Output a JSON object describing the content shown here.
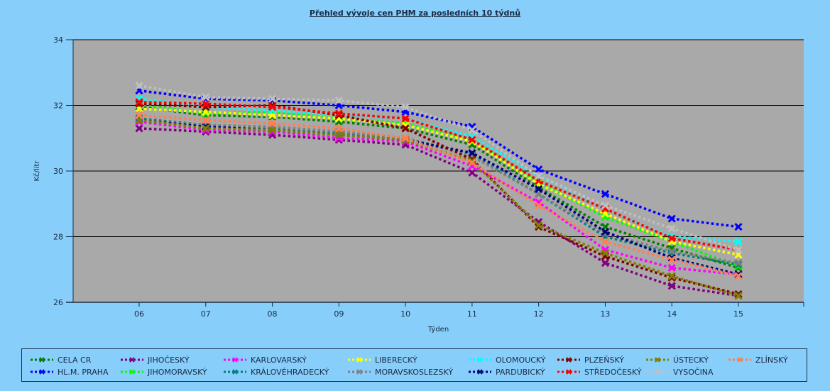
{
  "chart_data": {
    "type": "line",
    "title": "Přehled vývoje cen PHM za posledních 10 týdnů",
    "xlabel": "Týden",
    "ylabel": "Kč/litr",
    "ylim": [
      26,
      34
    ],
    "yticks": [
      "26",
      "28",
      "30",
      "32",
      "34"
    ],
    "grid": true,
    "legend_position": "bottom",
    "categories": [
      "06",
      "07",
      "08",
      "09",
      "10",
      "11",
      "12",
      "13",
      "14",
      "15"
    ],
    "series": [
      {
        "name": "CELA CR",
        "color": "#008000",
        "values": [
          31.95,
          31.7,
          31.65,
          31.5,
          31.3,
          30.8,
          29.5,
          28.3,
          27.65,
          27.05
        ]
      },
      {
        "name": "HL.M. PRAHA",
        "color": "#0000ff",
        "values": [
          32.45,
          32.2,
          32.15,
          32.0,
          31.8,
          31.35,
          30.05,
          29.3,
          28.55,
          28.3
        ]
      },
      {
        "name": "JIHOČESKÝ",
        "color": "#800080",
        "values": [
          31.3,
          31.2,
          31.1,
          30.95,
          30.8,
          29.95,
          28.45,
          27.2,
          26.5,
          26.2
        ]
      },
      {
        "name": "JIHOMORAVSKÝ",
        "color": "#00ff00",
        "values": [
          32.05,
          31.75,
          31.8,
          31.6,
          31.45,
          30.95,
          29.65,
          28.6,
          27.85,
          27.1
        ]
      },
      {
        "name": "KARLOVARSKÝ",
        "color": "#ff00ff",
        "values": [
          31.5,
          31.25,
          31.2,
          31.0,
          30.9,
          30.15,
          29.05,
          27.6,
          27.05,
          26.85
        ]
      },
      {
        "name": "KRÁLOVÉHRADECKÝ",
        "color": "#008080",
        "values": [
          31.6,
          31.4,
          31.3,
          31.15,
          31.0,
          30.5,
          29.3,
          28.0,
          27.5,
          27.15
        ]
      },
      {
        "name": "LIBERECKÝ",
        "color": "#ffff00",
        "values": [
          31.9,
          31.8,
          31.7,
          31.6,
          31.4,
          30.9,
          29.6,
          28.7,
          27.85,
          27.45
        ]
      },
      {
        "name": "MORAVSKOSLEZSKÝ",
        "color": "#808080",
        "values": [
          31.55,
          31.4,
          31.35,
          31.2,
          31.0,
          30.45,
          29.3,
          28.1,
          27.55,
          27.2
        ]
      },
      {
        "name": "OLOMOUCKÝ",
        "color": "#00ffff",
        "values": [
          32.2,
          31.95,
          31.85,
          31.7,
          31.6,
          31.05,
          29.85,
          28.85,
          28.0,
          27.85
        ]
      },
      {
        "name": "PARDUBICKÝ",
        "color": "#000080",
        "values": [
          31.55,
          31.35,
          31.25,
          31.1,
          30.95,
          30.55,
          29.45,
          28.15,
          27.35,
          26.85
        ]
      },
      {
        "name": "PLZEŇSKÝ",
        "color": "#800000",
        "values": [
          32.05,
          31.95,
          32.0,
          31.7,
          31.3,
          30.35,
          28.3,
          27.4,
          26.75,
          26.25
        ]
      },
      {
        "name": "STŘEDOČESKÝ",
        "color": "#ff0000",
        "values": [
          32.1,
          32.05,
          31.95,
          31.75,
          31.6,
          30.95,
          29.7,
          28.85,
          27.95,
          27.6
        ]
      },
      {
        "name": "ÚSTECKÝ",
        "color": "#808000",
        "values": [
          31.55,
          31.3,
          31.25,
          31.1,
          30.95,
          30.3,
          28.35,
          27.5,
          26.8,
          26.2
        ]
      },
      {
        "name": "VYSOČINA",
        "color": "#c0c0c0",
        "values": [
          32.6,
          32.25,
          32.2,
          32.15,
          31.95,
          31.25,
          29.85,
          28.95,
          28.25,
          27.6
        ]
      },
      {
        "name": "ZLÍNSKÝ",
        "color": "#ff7f50",
        "values": [
          31.7,
          31.55,
          31.45,
          31.3,
          31.0,
          30.25,
          28.95,
          27.85,
          27.3,
          26.8
        ]
      }
    ]
  },
  "legend_order": [
    [
      "CELA CR",
      "JIHOČESKÝ",
      "KARLOVARSKÝ",
      "LIBERECKÝ",
      "OLOMOUCKÝ",
      "PLZEŇSKÝ",
      "ÚSTECKÝ",
      "ZLÍNSKÝ"
    ],
    [
      "HL.M. PRAHA",
      "JIHOMORAVSKÝ",
      "KRÁLOVÉHRADECKÝ",
      "MORAVSKOSLEZSKÝ",
      "PARDUBICKÝ",
      "STŘEDOČESKÝ",
      "VYSOČINA"
    ]
  ],
  "colors": {
    "background": "#87cefa",
    "plot_background": "#a9a9a9",
    "axis": "#1a2a44"
  }
}
